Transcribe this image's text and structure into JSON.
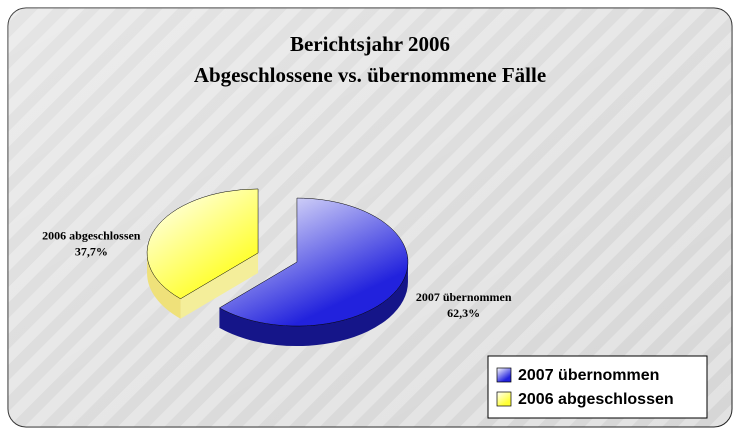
{
  "chart_data": {
    "type": "pie3d",
    "title": [
      "Berichtsjahr 2006",
      "Abgeschlossene vs. übernommene Fälle"
    ],
    "categories": [
      "2007 übernommen",
      "2006 abgeschlossen"
    ],
    "values": [
      62.3,
      37.7
    ],
    "value_labels": [
      "62,3%",
      "37,7%"
    ],
    "colors": [
      "#2222dd",
      "#ffff33"
    ],
    "legend": "lower right"
  }
}
